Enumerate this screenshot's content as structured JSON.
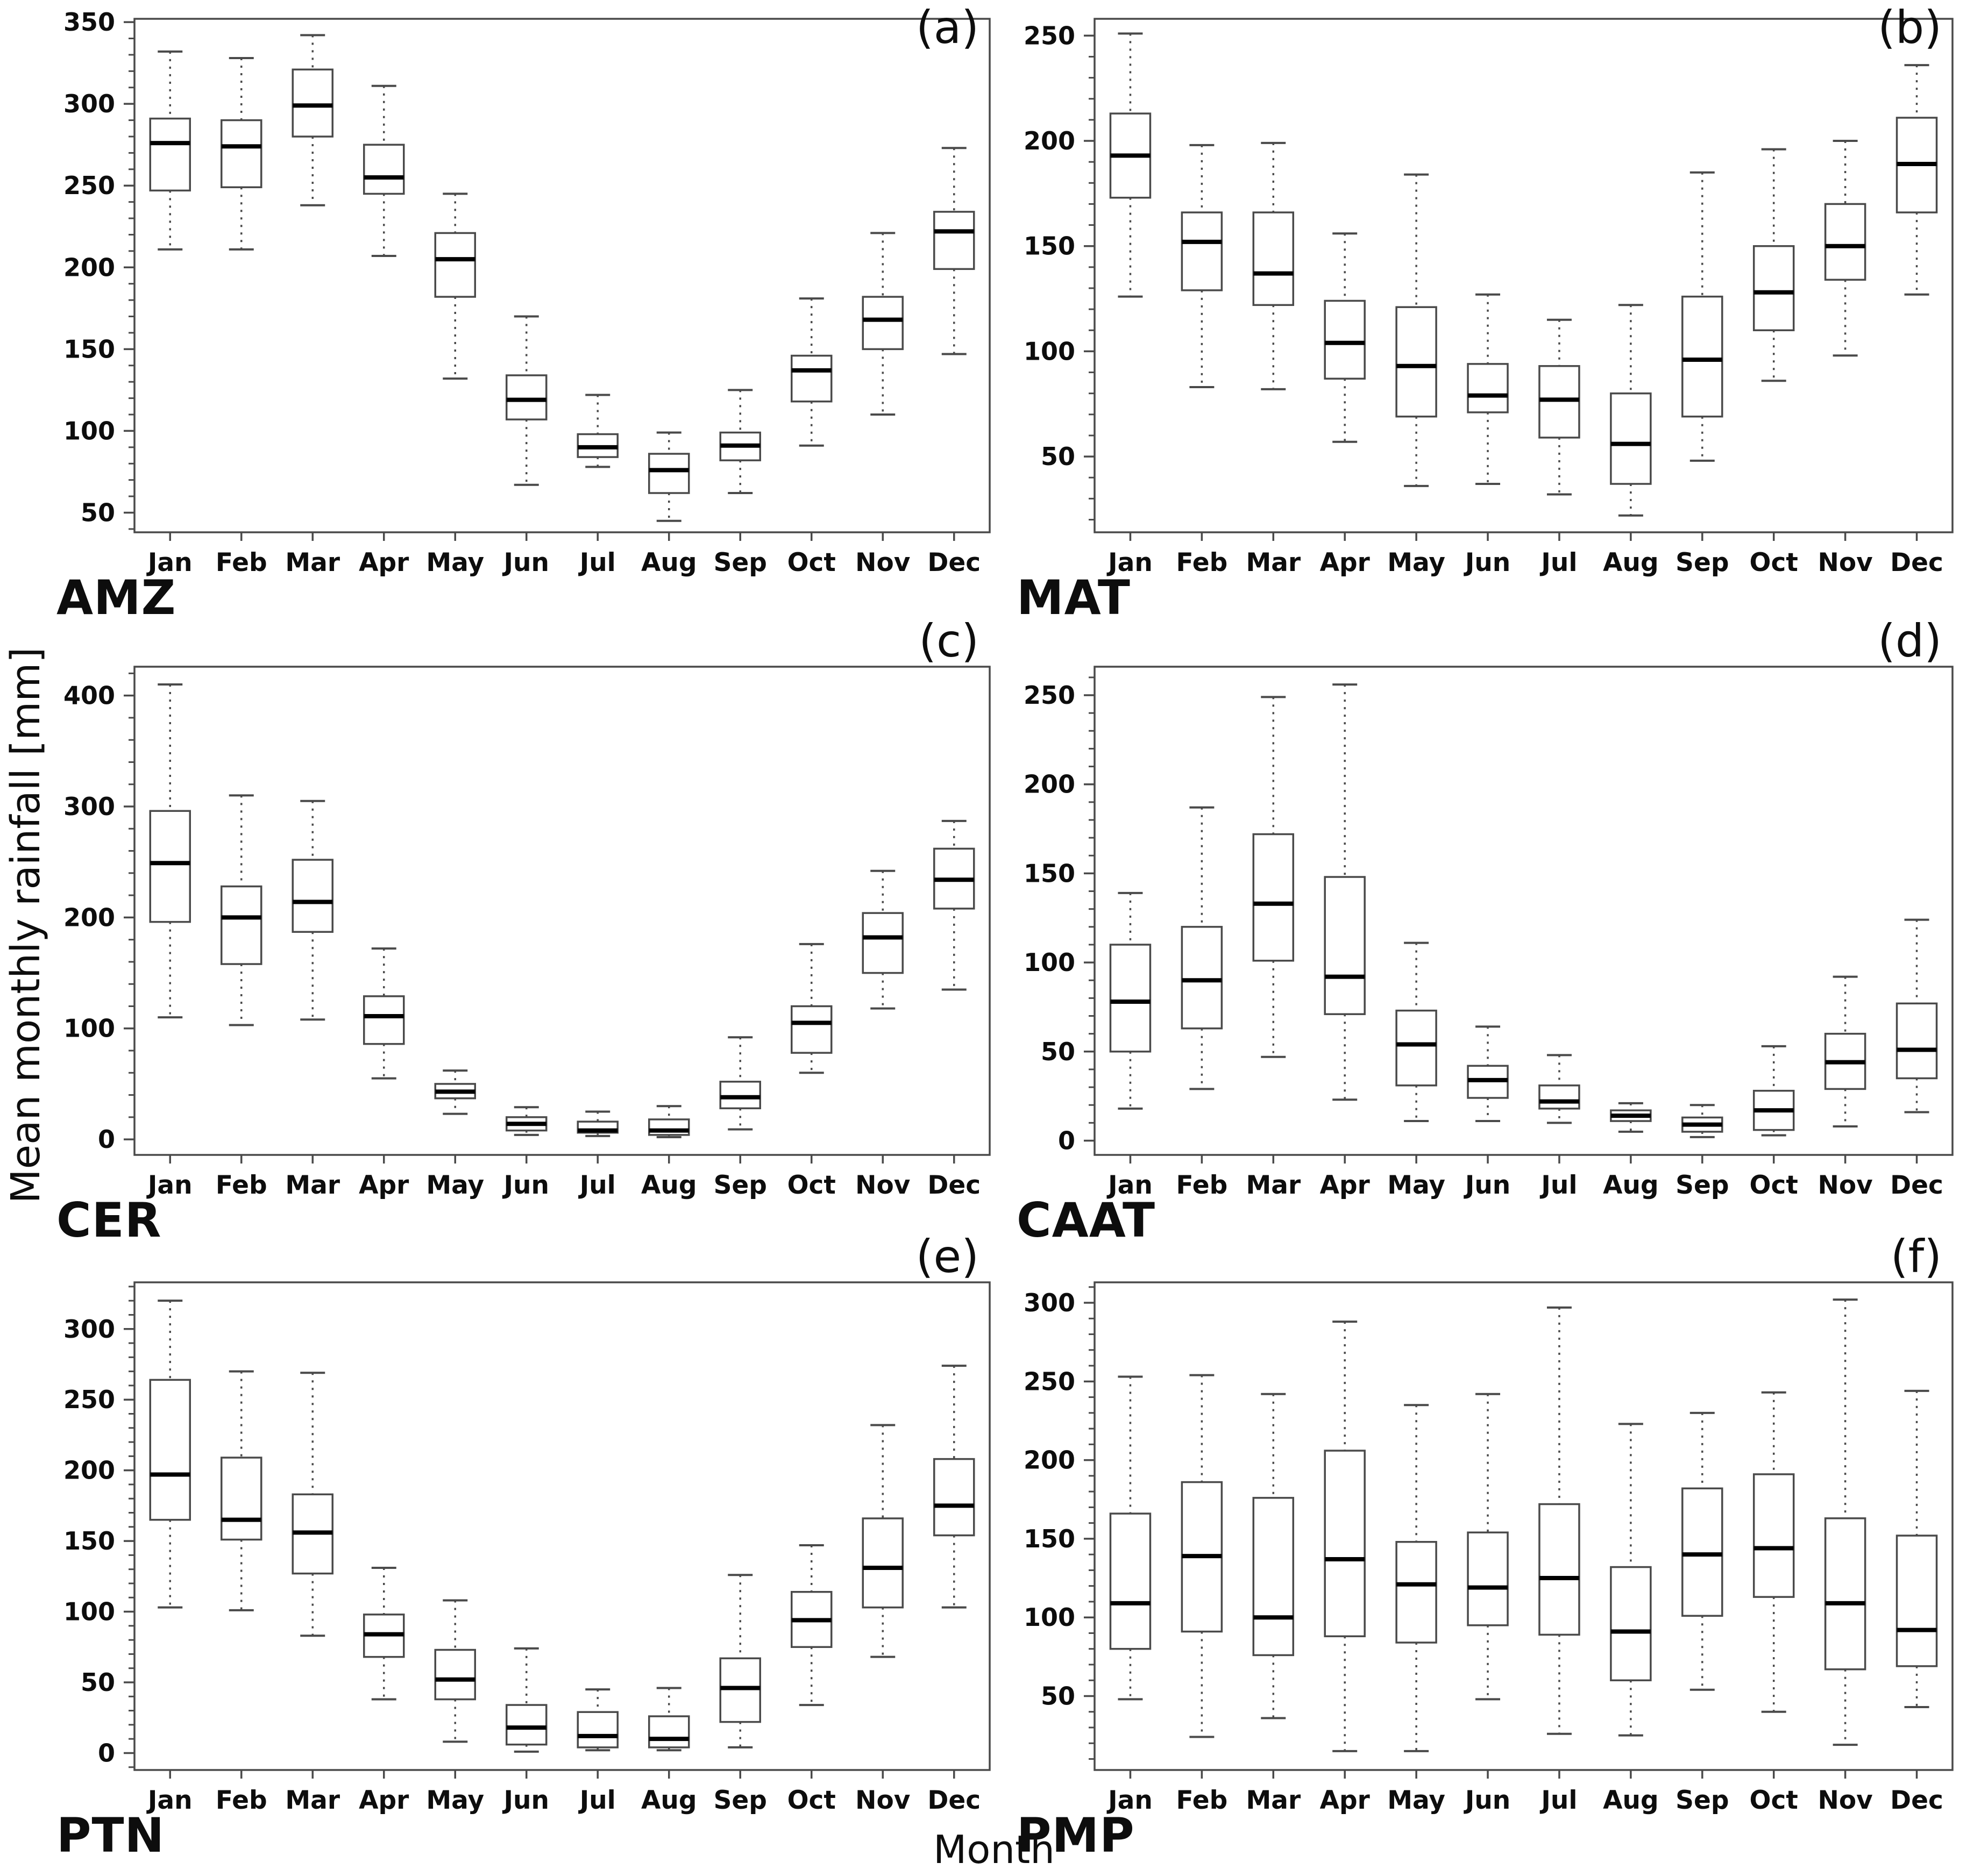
{
  "figure": {
    "ylabel": "Mean monthly rainfall [mm]",
    "xlabel": "Month",
    "months": [
      "Jan",
      "Feb",
      "Mar",
      "Apr",
      "May",
      "Jun",
      "Jul",
      "Aug",
      "Sep",
      "Oct",
      "Nov",
      "Dec"
    ],
    "line_color": "#4a4a4a",
    "median_color": "#000000",
    "text_color": "#0d0d0d",
    "background_color": "#ffffff"
  },
  "chart_data": [
    {
      "type": "boxplot",
      "panel": "(a)",
      "region": "AMZ",
      "xlabel": "",
      "ylabel": "",
      "categories": [
        "Jan",
        "Feb",
        "Mar",
        "Apr",
        "May",
        "Jun",
        "Jul",
        "Aug",
        "Sep",
        "Oct",
        "Nov",
        "Dec"
      ],
      "yticks": [
        50,
        100,
        150,
        200,
        250,
        300,
        350
      ],
      "minor_step": 10,
      "ylim": [
        38,
        352
      ],
      "grid": false,
      "boxes": [
        {
          "month": "Jan",
          "whislo": 211,
          "q1": 247,
          "med": 276,
          "q3": 291,
          "whishi": 332
        },
        {
          "month": "Feb",
          "whislo": 211,
          "q1": 249,
          "med": 274,
          "q3": 290,
          "whishi": 328
        },
        {
          "month": "Mar",
          "whislo": 238,
          "q1": 280,
          "med": 299,
          "q3": 321,
          "whishi": 342
        },
        {
          "month": "Apr",
          "whislo": 207,
          "q1": 245,
          "med": 255,
          "q3": 275,
          "whishi": 311
        },
        {
          "month": "May",
          "whislo": 132,
          "q1": 182,
          "med": 205,
          "q3": 221,
          "whishi": 245
        },
        {
          "month": "Jun",
          "whislo": 67,
          "q1": 107,
          "med": 119,
          "q3": 134,
          "whishi": 170
        },
        {
          "month": "Jul",
          "whislo": 78,
          "q1": 84,
          "med": 90,
          "q3": 98,
          "whishi": 122
        },
        {
          "month": "Aug",
          "whislo": 45,
          "q1": 62,
          "med": 76,
          "q3": 86,
          "whishi": 99
        },
        {
          "month": "Sep",
          "whislo": 62,
          "q1": 82,
          "med": 91,
          "q3": 99,
          "whishi": 125
        },
        {
          "month": "Oct",
          "whislo": 91,
          "q1": 118,
          "med": 137,
          "q3": 146,
          "whishi": 181
        },
        {
          "month": "Nov",
          "whislo": 110,
          "q1": 150,
          "med": 168,
          "q3": 182,
          "whishi": 221
        },
        {
          "month": "Dec",
          "whislo": 147,
          "q1": 199,
          "med": 222,
          "q3": 234,
          "whishi": 273
        }
      ]
    },
    {
      "type": "boxplot",
      "panel": "(b)",
      "region": "MAT",
      "xlabel": "",
      "ylabel": "",
      "categories": [
        "Jan",
        "Feb",
        "Mar",
        "Apr",
        "May",
        "Jun",
        "Jul",
        "Aug",
        "Sep",
        "Oct",
        "Nov",
        "Dec"
      ],
      "yticks": [
        50,
        100,
        150,
        200,
        250
      ],
      "minor_step": 10,
      "ylim": [
        14,
        258
      ],
      "grid": false,
      "boxes": [
        {
          "month": "Jan",
          "whislo": 126,
          "q1": 173,
          "med": 193,
          "q3": 213,
          "whishi": 251
        },
        {
          "month": "Feb",
          "whislo": 83,
          "q1": 129,
          "med": 152,
          "q3": 166,
          "whishi": 198
        },
        {
          "month": "Mar",
          "whislo": 82,
          "q1": 122,
          "med": 137,
          "q3": 166,
          "whishi": 199
        },
        {
          "month": "Apr",
          "whislo": 57,
          "q1": 87,
          "med": 104,
          "q3": 124,
          "whishi": 156
        },
        {
          "month": "May",
          "whislo": 36,
          "q1": 69,
          "med": 93,
          "q3": 121,
          "whishi": 184
        },
        {
          "month": "Jun",
          "whislo": 37,
          "q1": 71,
          "med": 79,
          "q3": 94,
          "whishi": 127
        },
        {
          "month": "Jul",
          "whislo": 32,
          "q1": 59,
          "med": 77,
          "q3": 93,
          "whishi": 115
        },
        {
          "month": "Aug",
          "whislo": 22,
          "q1": 37,
          "med": 56,
          "q3": 80,
          "whishi": 122
        },
        {
          "month": "Sep",
          "whislo": 48,
          "q1": 69,
          "med": 96,
          "q3": 126,
          "whishi": 185
        },
        {
          "month": "Oct",
          "whislo": 86,
          "q1": 110,
          "med": 128,
          "q3": 150,
          "whishi": 196
        },
        {
          "month": "Nov",
          "whislo": 98,
          "q1": 134,
          "med": 150,
          "q3": 170,
          "whishi": 200
        },
        {
          "month": "Dec",
          "whislo": 127,
          "q1": 166,
          "med": 189,
          "q3": 211,
          "whishi": 236
        }
      ]
    },
    {
      "type": "boxplot",
      "panel": "(c)",
      "region": "CER",
      "xlabel": "",
      "ylabel": "",
      "categories": [
        "Jan",
        "Feb",
        "Mar",
        "Apr",
        "May",
        "Jun",
        "Jul",
        "Aug",
        "Sep",
        "Oct",
        "Nov",
        "Dec"
      ],
      "yticks": [
        0,
        100,
        200,
        300,
        400
      ],
      "minor_step": 20,
      "ylim": [
        -14,
        426
      ],
      "grid": false,
      "boxes": [
        {
          "month": "Jan",
          "whislo": 110,
          "q1": 196,
          "med": 249,
          "q3": 296,
          "whishi": 410
        },
        {
          "month": "Feb",
          "whislo": 103,
          "q1": 158,
          "med": 200,
          "q3": 228,
          "whishi": 310
        },
        {
          "month": "Mar",
          "whislo": 108,
          "q1": 187,
          "med": 214,
          "q3": 252,
          "whishi": 305
        },
        {
          "month": "Apr",
          "whislo": 55,
          "q1": 86,
          "med": 111,
          "q3": 129,
          "whishi": 172
        },
        {
          "month": "May",
          "whislo": 23,
          "q1": 37,
          "med": 43,
          "q3": 50,
          "whishi": 62
        },
        {
          "month": "Jun",
          "whislo": 4,
          "q1": 8,
          "med": 14,
          "q3": 20,
          "whishi": 29
        },
        {
          "month": "Jul",
          "whislo": 3,
          "q1": 6,
          "med": 8,
          "q3": 16,
          "whishi": 25
        },
        {
          "month": "Aug",
          "whislo": 2,
          "q1": 4,
          "med": 8,
          "q3": 18,
          "whishi": 30
        },
        {
          "month": "Sep",
          "whislo": 9,
          "q1": 28,
          "med": 38,
          "q3": 52,
          "whishi": 92
        },
        {
          "month": "Oct",
          "whislo": 60,
          "q1": 78,
          "med": 105,
          "q3": 120,
          "whishi": 176
        },
        {
          "month": "Nov",
          "whislo": 118,
          "q1": 150,
          "med": 182,
          "q3": 204,
          "whishi": 242
        },
        {
          "month": "Dec",
          "whislo": 135,
          "q1": 208,
          "med": 234,
          "q3": 262,
          "whishi": 287
        }
      ]
    },
    {
      "type": "boxplot",
      "panel": "(d)",
      "region": "CAAT",
      "xlabel": "",
      "ylabel": "",
      "categories": [
        "Jan",
        "Feb",
        "Mar",
        "Apr",
        "May",
        "Jun",
        "Jul",
        "Aug",
        "Sep",
        "Oct",
        "Nov",
        "Dec"
      ],
      "yticks": [
        0,
        50,
        100,
        150,
        200,
        250
      ],
      "minor_step": 10,
      "ylim": [
        -8,
        266
      ],
      "grid": false,
      "boxes": [
        {
          "month": "Jan",
          "whislo": 18,
          "q1": 50,
          "med": 78,
          "q3": 110,
          "whishi": 139
        },
        {
          "month": "Feb",
          "whislo": 29,
          "q1": 63,
          "med": 90,
          "q3": 120,
          "whishi": 187
        },
        {
          "month": "Mar",
          "whislo": 47,
          "q1": 101,
          "med": 133,
          "q3": 172,
          "whishi": 249
        },
        {
          "month": "Apr",
          "whislo": 23,
          "q1": 71,
          "med": 92,
          "q3": 148,
          "whishi": 256
        },
        {
          "month": "May",
          "whislo": 11,
          "q1": 31,
          "med": 54,
          "q3": 73,
          "whishi": 111
        },
        {
          "month": "Jun",
          "whislo": 11,
          "q1": 24,
          "med": 34,
          "q3": 42,
          "whishi": 64
        },
        {
          "month": "Jul",
          "whislo": 10,
          "q1": 18,
          "med": 22,
          "q3": 31,
          "whishi": 48
        },
        {
          "month": "Aug",
          "whislo": 5,
          "q1": 11,
          "med": 14,
          "q3": 17,
          "whishi": 21
        },
        {
          "month": "Sep",
          "whislo": 2,
          "q1": 5,
          "med": 9,
          "q3": 13,
          "whishi": 20
        },
        {
          "month": "Oct",
          "whislo": 3,
          "q1": 6,
          "med": 17,
          "q3": 28,
          "whishi": 53
        },
        {
          "month": "Nov",
          "whislo": 8,
          "q1": 29,
          "med": 44,
          "q3": 60,
          "whishi": 92
        },
        {
          "month": "Dec",
          "whislo": 16,
          "q1": 35,
          "med": 51,
          "q3": 77,
          "whishi": 124
        }
      ]
    },
    {
      "type": "boxplot",
      "panel": "(e)",
      "region": "PTN",
      "xlabel": "",
      "ylabel": "",
      "categories": [
        "Jan",
        "Feb",
        "Mar",
        "Apr",
        "May",
        "Jun",
        "Jul",
        "Aug",
        "Sep",
        "Oct",
        "Nov",
        "Dec"
      ],
      "yticks": [
        0,
        50,
        100,
        150,
        200,
        250,
        300
      ],
      "minor_step": 10,
      "ylim": [
        -12,
        333
      ],
      "grid": false,
      "boxes": [
        {
          "month": "Jan",
          "whislo": 103,
          "q1": 165,
          "med": 197,
          "q3": 264,
          "whishi": 320
        },
        {
          "month": "Feb",
          "whislo": 101,
          "q1": 151,
          "med": 165,
          "q3": 209,
          "whishi": 270
        },
        {
          "month": "Mar",
          "whislo": 83,
          "q1": 127,
          "med": 156,
          "q3": 183,
          "whishi": 269
        },
        {
          "month": "Apr",
          "whislo": 38,
          "q1": 68,
          "med": 84,
          "q3": 98,
          "whishi": 131
        },
        {
          "month": "May",
          "whislo": 8,
          "q1": 38,
          "med": 52,
          "q3": 73,
          "whishi": 108
        },
        {
          "month": "Jun",
          "whislo": 1,
          "q1": 6,
          "med": 18,
          "q3": 34,
          "whishi": 74
        },
        {
          "month": "Jul",
          "whislo": 2,
          "q1": 4,
          "med": 12,
          "q3": 29,
          "whishi": 45
        },
        {
          "month": "Aug",
          "whislo": 2,
          "q1": 4,
          "med": 10,
          "q3": 26,
          "whishi": 46
        },
        {
          "month": "Sep",
          "whislo": 4,
          "q1": 22,
          "med": 46,
          "q3": 67,
          "whishi": 126
        },
        {
          "month": "Oct",
          "whislo": 34,
          "q1": 75,
          "med": 94,
          "q3": 114,
          "whishi": 147
        },
        {
          "month": "Nov",
          "whislo": 68,
          "q1": 103,
          "med": 131,
          "q3": 166,
          "whishi": 232
        },
        {
          "month": "Dec",
          "whislo": 103,
          "q1": 154,
          "med": 175,
          "q3": 208,
          "whishi": 274
        }
      ]
    },
    {
      "type": "boxplot",
      "panel": "(f)",
      "region": "PMP",
      "xlabel": "",
      "ylabel": "",
      "categories": [
        "Jan",
        "Feb",
        "Mar",
        "Apr",
        "May",
        "Jun",
        "Jul",
        "Aug",
        "Sep",
        "Oct",
        "Nov",
        "Dec"
      ],
      "yticks": [
        50,
        100,
        150,
        200,
        250,
        300
      ],
      "minor_step": 10,
      "ylim": [
        3,
        313
      ],
      "grid": false,
      "boxes": [
        {
          "month": "Jan",
          "whislo": 48,
          "q1": 80,
          "med": 109,
          "q3": 166,
          "whishi": 253
        },
        {
          "month": "Feb",
          "whislo": 24,
          "q1": 91,
          "med": 139,
          "q3": 186,
          "whishi": 254
        },
        {
          "month": "Mar",
          "whislo": 36,
          "q1": 76,
          "med": 100,
          "q3": 176,
          "whishi": 242
        },
        {
          "month": "Apr",
          "whislo": 15,
          "q1": 88,
          "med": 137,
          "q3": 206,
          "whishi": 288
        },
        {
          "month": "May",
          "whislo": 15,
          "q1": 84,
          "med": 121,
          "q3": 148,
          "whishi": 235
        },
        {
          "month": "Jun",
          "whislo": 48,
          "q1": 95,
          "med": 119,
          "q3": 154,
          "whishi": 242
        },
        {
          "month": "Jul",
          "whislo": 26,
          "q1": 89,
          "med": 125,
          "q3": 172,
          "whishi": 297
        },
        {
          "month": "Aug",
          "whislo": 25,
          "q1": 60,
          "med": 91,
          "q3": 132,
          "whishi": 223
        },
        {
          "month": "Sep",
          "whislo": 54,
          "q1": 101,
          "med": 140,
          "q3": 182,
          "whishi": 230
        },
        {
          "month": "Oct",
          "whislo": 40,
          "q1": 113,
          "med": 144,
          "q3": 191,
          "whishi": 243
        },
        {
          "month": "Nov",
          "whislo": 19,
          "q1": 67,
          "med": 109,
          "q3": 163,
          "whishi": 302
        },
        {
          "month": "Dec",
          "whislo": 43,
          "q1": 69,
          "med": 92,
          "q3": 152,
          "whishi": 244
        }
      ]
    }
  ]
}
